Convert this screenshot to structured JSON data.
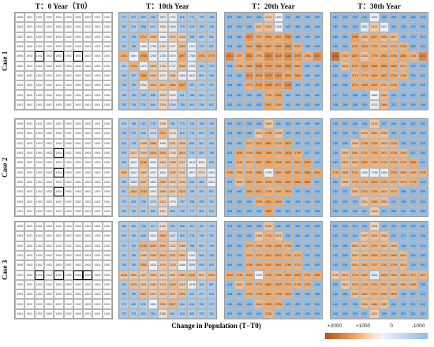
{
  "columns": [
    "T：0 Year（T0）",
    "T：10th Year",
    "T：20th Year",
    "T：30th Year"
  ],
  "rows": [
    "Case 1",
    "Case 2",
    "Case 3"
  ],
  "xlabel": "Change in Population (T−T0)",
  "colorbar": {
    "ticks": [
      "+2000",
      "+1000",
      "0",
      "-1000"
    ],
    "colors": {
      "high": "#b85014",
      "mid_high": "#f2a45c",
      "zero": "#eef3fb",
      "low": "#8bbbe8"
    }
  },
  "baseline_values": [
    [
      "1906",
      "1901",
      "1901",
      "1902",
      "1902",
      "1903",
      "1903",
      "1902",
      "1901",
      "1901"
    ],
    [
      "1903",
      "1903",
      "1903",
      "1902",
      "1902",
      "1902",
      "1902",
      "1902",
      "1902",
      "1901"
    ],
    [
      "1902",
      "1903",
      "1903",
      "1902",
      "1903",
      "1902",
      "1902",
      "1902",
      "1902",
      "1901"
    ],
    [
      "1903",
      "1903",
      "1902",
      "1902",
      "1903",
      "1902",
      "1903",
      "1903",
      "1902",
      "1902"
    ],
    [
      "1906",
      "1902",
      "1902",
      "1902",
      "1903",
      "1902",
      "1902",
      "1902",
      "1903",
      "1901"
    ],
    [
      "1902",
      "1902",
      "1902",
      "1902",
      "1902",
      "1903",
      "1902",
      "1902",
      "1902",
      "1901"
    ],
    [
      "1902",
      "1902",
      "1902",
      "1902",
      "1902",
      "1902",
      "1902",
      "1902",
      "1903",
      "1901"
    ],
    [
      "1903",
      "1903",
      "1902",
      "1902",
      "1903",
      "1903",
      "1902",
      "1902",
      "1903",
      "1903"
    ],
    [
      "1903",
      "1902",
      "1902",
      "1902",
      "1902",
      "1902",
      "1902",
      "1902",
      "1902",
      "1901"
    ],
    [
      "1901",
      "1901",
      "1902",
      "1902",
      "1903",
      "1902",
      "1903",
      "1901",
      "1901",
      "1901"
    ]
  ],
  "panels": [
    {
      "case": "Case 1",
      "t10": [
        [
          "771",
          "827",
          "860",
          "798",
          "1607",
          "1767",
          "815",
          "771",
          "798",
          "788"
        ],
        [
          "783",
          "874",
          "698",
          "1017",
          "2059",
          "1694",
          "779",
          "825",
          "750",
          "736"
        ],
        [
          "761",
          "736",
          "2710",
          "2530",
          "1848",
          "2412",
          "2438",
          "788",
          "825",
          "861"
        ],
        [
          "781",
          "736",
          "1889",
          "1795",
          "2132",
          "1977",
          "2596",
          "1797",
          "774",
          "821"
        ],
        [
          "2781",
          "1944",
          "2946",
          "1785",
          "1755",
          "1870",
          "2897",
          "1758",
          "2781",
          "2776"
        ],
        [
          "961",
          "2761",
          "1879",
          "2495",
          "2196",
          "1717",
          "2639",
          "1790",
          "781",
          "774"
        ],
        [
          "768",
          "787",
          "2880",
          "2492",
          "2072",
          "2436",
          "1808",
          "1822",
          "891",
          "786"
        ],
        [
          "748",
          "789",
          "2062",
          "2642",
          "2607",
          "2666",
          "2917",
          "787",
          "775",
          "747"
        ],
        [
          "788",
          "790",
          "789",
          "828",
          "2339",
          "2015",
          "811",
          "780",
          "813",
          "774"
        ],
        [
          "750",
          "794",
          "775",
          "849",
          "2334",
          "1244",
          "760",
          "803",
          "796",
          "812"
        ]
      ],
      "t20": [
        [
          "423",
          "451",
          "512",
          "436",
          "2413",
          "1890",
          "440",
          "463",
          "448",
          "469"
        ],
        [
          "452",
          "404",
          "436",
          "2547",
          "2600",
          "1948",
          "443",
          "459",
          "468",
          "440"
        ],
        [
          "433",
          "464",
          "3073",
          "2797",
          "2914",
          "2870",
          "2983",
          "438",
          "459",
          "449"
        ],
        [
          "443",
          "466",
          "2903",
          "2987",
          "2887",
          "2963",
          "3084",
          "2767",
          "468",
          "429"
        ],
        [
          "3191",
          "2787",
          "3052",
          "2791",
          "3205",
          "3018",
          "3186",
          "2976",
          "2784",
          "3157"
        ],
        [
          "434",
          "2758",
          "2882",
          "3046",
          "2999",
          "2954",
          "3022",
          "2800",
          "434",
          "450"
        ],
        [
          "449",
          "465",
          "3071",
          "2976",
          "3075",
          "3069",
          "2899",
          "2885",
          "465",
          "453"
        ],
        [
          "469",
          "432",
          "2779",
          "2976",
          "3008",
          "2977",
          "3150",
          "464",
          "430",
          "451"
        ],
        [
          "433",
          "441",
          "490",
          "464",
          "2790",
          "2931",
          "454",
          "444",
          "459",
          "452"
        ],
        [
          "420",
          "421",
          "442",
          "428",
          "2892",
          "2789",
          "443",
          "439",
          "421",
          "450"
        ]
      ],
      "t30": [
        [
          "281",
          "228",
          "270",
          "216",
          "1890",
          "230",
          "209",
          "188",
          "188",
          "216"
        ],
        [
          "193",
          "253",
          "218",
          "1611",
          "2421",
          "1827",
          "210",
          "216",
          "270",
          "233"
        ],
        [
          "238",
          "201",
          "2990",
          "2620",
          "2817",
          "2654",
          "2617",
          "205",
          "270",
          "212"
        ],
        [
          "235",
          "230",
          "2797",
          "2813",
          "2770",
          "2706",
          "2714",
          "2740",
          "209",
          "226"
        ],
        [
          "3517",
          "2742",
          "2876",
          "2515",
          "2775",
          "2853",
          "2768",
          "2860",
          "2744",
          "3211"
        ],
        [
          "226",
          "2613",
          "2797",
          "2912",
          "2846",
          "2896",
          "2800",
          "2671",
          "210",
          "218"
        ],
        [
          "204",
          "238",
          "2713",
          "2774",
          "2809",
          "2827",
          "2796",
          "2749",
          "224",
          "210"
        ],
        [
          "243",
          "216",
          "2774",
          "2845",
          "2812",
          "2712",
          "2766",
          "228",
          "209",
          "218"
        ],
        [
          "217",
          "213",
          "208",
          "213",
          "1880",
          "2644",
          "210",
          "218",
          "197",
          "204"
        ],
        [
          "218",
          "209",
          "230",
          "224",
          "2013",
          "2666",
          "212",
          "210",
          "206",
          "195"
        ]
      ]
    },
    {
      "case": "Case 2",
      "t10": [
        [
          "876",
          "788",
          "767",
          "776",
          "2258",
          "781",
          "773",
          "743",
          "786",
          "760"
        ],
        [
          "738",
          "772",
          "845",
          "1278",
          "2741",
          "2143",
          "810",
          "776",
          "819",
          "740"
        ],
        [
          "811",
          "778",
          "2438",
          "2568",
          "1999",
          "2431",
          "2506",
          "853",
          "847",
          "834"
        ],
        [
          "829",
          "2412",
          "2449",
          "2628",
          "2626",
          "2218",
          "2614",
          "774",
          "833",
          "788"
        ],
        [
          "836",
          "1812",
          "2749",
          "1836",
          "2415",
          "2469",
          "2417",
          "1813",
          "2014",
          "810"
        ],
        [
          "2580",
          "1812",
          "2462",
          "1937",
          "1816",
          "2515",
          "2411",
          "1807",
          "2274",
          "1804"
        ],
        [
          "859",
          "1549",
          "2547",
          "1852",
          "2560",
          "2420",
          "2445",
          "839",
          "862",
          "1803"
        ],
        [
          "807",
          "2626",
          "2744",
          "1992",
          "2485",
          "2447",
          "2626",
          "785",
          "839",
          "807"
        ],
        [
          "779",
          "826",
          "758",
          "1276",
          "2431",
          "1975",
          "797",
          "786",
          "755",
          "791"
        ],
        [
          "832",
          "790",
          "831",
          "869",
          "2237",
          "809",
          "748",
          "777",
          "804",
          "813"
        ]
      ],
      "t20": [
        [
          "489",
          "427",
          "435",
          "436",
          "2489",
          "426",
          "415",
          "499",
          "459",
          "469"
        ],
        [
          "416",
          "433",
          "436",
          "2513",
          "2798",
          "2548",
          "429",
          "426",
          "424",
          "414"
        ],
        [
          "464",
          "463",
          "2717",
          "2812",
          "2862",
          "2743",
          "2873",
          "423",
          "427",
          "429"
        ],
        [
          "423",
          "2833",
          "2745",
          "2862",
          "2848",
          "2791",
          "2878",
          "2769",
          "417",
          "431"
        ],
        [
          "468",
          "2749",
          "2719",
          "2847",
          "2892",
          "2806",
          "2821",
          "2811",
          "2906",
          "412"
        ],
        [
          "2786",
          "2708",
          "2781",
          "2830",
          "1795",
          "2830",
          "2887",
          "2812",
          "2866",
          "2844"
        ],
        [
          "424",
          "2624",
          "2847",
          "2804",
          "2816",
          "2843",
          "2867",
          "2868",
          "2894",
          "417"
        ],
        [
          "425",
          "463",
          "2851",
          "2871",
          "2756",
          "2800",
          "2834",
          "415",
          "416",
          "434"
        ],
        [
          "438",
          "429",
          "453",
          "2789",
          "2911",
          "2849",
          "434",
          "426",
          "424",
          "425"
        ],
        [
          "424",
          "407",
          "430",
          "443",
          "2889",
          "428",
          "412",
          "447",
          "423",
          "438"
        ]
      ],
      "t30": [
        [
          "215",
          "222",
          "226",
          "215",
          "2476",
          "227",
          "208",
          "234",
          "222",
          "231"
        ],
        [
          "221",
          "218",
          "219",
          "2576",
          "2661",
          "2596",
          "224",
          "210",
          "218",
          "214"
        ],
        [
          "210",
          "198",
          "2530",
          "2736",
          "2743",
          "2615",
          "2744",
          "202",
          "213",
          "218"
        ],
        [
          "214",
          "2591",
          "2681",
          "2731",
          "2790",
          "2671",
          "2728",
          "2649",
          "217",
          "208"
        ],
        [
          "221",
          "2647",
          "2644",
          "2800",
          "2726",
          "2714",
          "2744",
          "2729",
          "2844",
          "211"
        ],
        [
          "2740",
          "2654",
          "2741",
          "1840",
          "1798",
          "1826",
          "2762",
          "2669",
          "2695",
          "2749"
        ],
        [
          "262",
          "2566",
          "2734",
          "2718",
          "2802",
          "2725",
          "2712",
          "2679",
          "2772",
          "218"
        ],
        [
          "234",
          "237",
          "2582",
          "2721",
          "2729",
          "2624",
          "2712",
          "208",
          "210",
          "208"
        ],
        [
          "224",
          "230",
          "215",
          "2511",
          "2680",
          "2593",
          "211",
          "215",
          "212",
          "216"
        ],
        [
          "238",
          "222",
          "216",
          "207",
          "2406",
          "212",
          "205",
          "211",
          "222",
          "206"
        ]
      ]
    },
    {
      "case": "Case 3",
      "t10": [
        [
          "860",
          "852",
          "758",
          "917",
          "2190",
          "762",
          "806",
          "787",
          "787",
          "790"
        ],
        [
          "804",
          "765",
          "808",
          "1820",
          "2645",
          "1417",
          "826",
          "778",
          "790",
          "781"
        ],
        [
          "773",
          "781",
          "2745",
          "2639",
          "2590",
          "2312",
          "2466",
          "788",
          "823",
          "794"
        ],
        [
          "791",
          "789",
          "2485",
          "2556",
          "2616",
          "2531",
          "2561",
          "1767",
          "804",
          "745"
        ],
        [
          "744",
          "789",
          "2635",
          "1816",
          "2476",
          "2415",
          "1886",
          "1599",
          "818",
          "810"
        ],
        [
          "2548",
          "2508",
          "2457",
          "2504",
          "2417",
          "2467",
          "2582",
          "2636",
          "2457",
          "2580"
        ],
        [
          "762",
          "2578",
          "2431",
          "2463",
          "2475",
          "2640",
          "2419",
          "1978",
          "905",
          "887"
        ],
        [
          "782",
          "780",
          "2627",
          "2421",
          "2513",
          "2467",
          "2625",
          "811",
          "871",
          "818"
        ],
        [
          "872",
          "820",
          "876",
          "1894",
          "2535",
          "2697",
          "844",
          "816",
          "780",
          "797"
        ],
        [
          "779",
          "774",
          "824",
          "754",
          "2186",
          "824",
          "834",
          "885",
          "790",
          "781"
        ]
      ],
      "t20": [
        [
          "474",
          "431",
          "436",
          "448",
          "2516",
          "445",
          "437",
          "432",
          "415",
          "428"
        ],
        [
          "421",
          "418",
          "452",
          "2496",
          "2733",
          "2521",
          "434",
          "445",
          "467",
          "430"
        ],
        [
          "429",
          "432",
          "2779",
          "2765",
          "2789",
          "2831",
          "2745",
          "436",
          "440",
          "422"
        ],
        [
          "427",
          "419",
          "2734",
          "2772",
          "2813",
          "2870",
          "2790",
          "2731",
          "437",
          "418"
        ],
        [
          "464",
          "430",
          "2768",
          "2804",
          "2810",
          "2841",
          "2796",
          "2731",
          "451",
          "430"
        ],
        [
          "2810",
          "2746",
          "2784",
          "1900",
          "2780",
          "2765",
          "2805",
          "2819",
          "2752",
          "2809"
        ],
        [
          "415",
          "2601",
          "2797",
          "2779",
          "2852",
          "2829",
          "2775",
          "2726",
          "2792",
          "418"
        ],
        [
          "428",
          "422",
          "2726",
          "2755",
          "2824",
          "2798",
          "2813",
          "430",
          "418",
          "456"
        ],
        [
          "440",
          "438",
          "435",
          "2646",
          "2838",
          "2796",
          "425",
          "433",
          "432",
          "431"
        ],
        [
          "424",
          "429",
          "423",
          "441",
          "2744",
          "428",
          "441",
          "425",
          "420",
          "434"
        ]
      ],
      "t30": [
        [
          "302",
          "215",
          "210",
          "214",
          "2294",
          "223",
          "219",
          "204",
          "220",
          "201"
        ],
        [
          "219",
          "213",
          "214",
          "2497",
          "2603",
          "2566",
          "211",
          "217",
          "210",
          "208"
        ],
        [
          "218",
          "203",
          "2618",
          "2617",
          "2707",
          "2631",
          "2594",
          "225",
          "213",
          "215"
        ],
        [
          "212",
          "208",
          "2592",
          "2636",
          "2693",
          "2702",
          "2685",
          "2651",
          "214",
          "206"
        ],
        [
          "212",
          "214",
          "2624",
          "2681",
          "2707",
          "2741",
          "2709",
          "2624",
          "218",
          "201"
        ],
        [
          "2432",
          "2613",
          "2716",
          "2682",
          "1661",
          "2695",
          "2636",
          "2696",
          "2677",
          "2671"
        ],
        [
          "209",
          "2501",
          "2678",
          "2716",
          "2731",
          "2707",
          "2695",
          "2661",
          "2685",
          "206"
        ],
        [
          "211",
          "206",
          "2592",
          "2651",
          "2717",
          "2690",
          "2694",
          "210",
          "207",
          "212"
        ],
        [
          "215",
          "207",
          "226",
          "2604",
          "2666",
          "2587",
          "210",
          "213",
          "221",
          "215"
        ],
        [
          "226",
          "198",
          "219",
          "213",
          "2401",
          "209",
          "203",
          "207",
          "211",
          "207"
        ]
      ]
    }
  ]
}
